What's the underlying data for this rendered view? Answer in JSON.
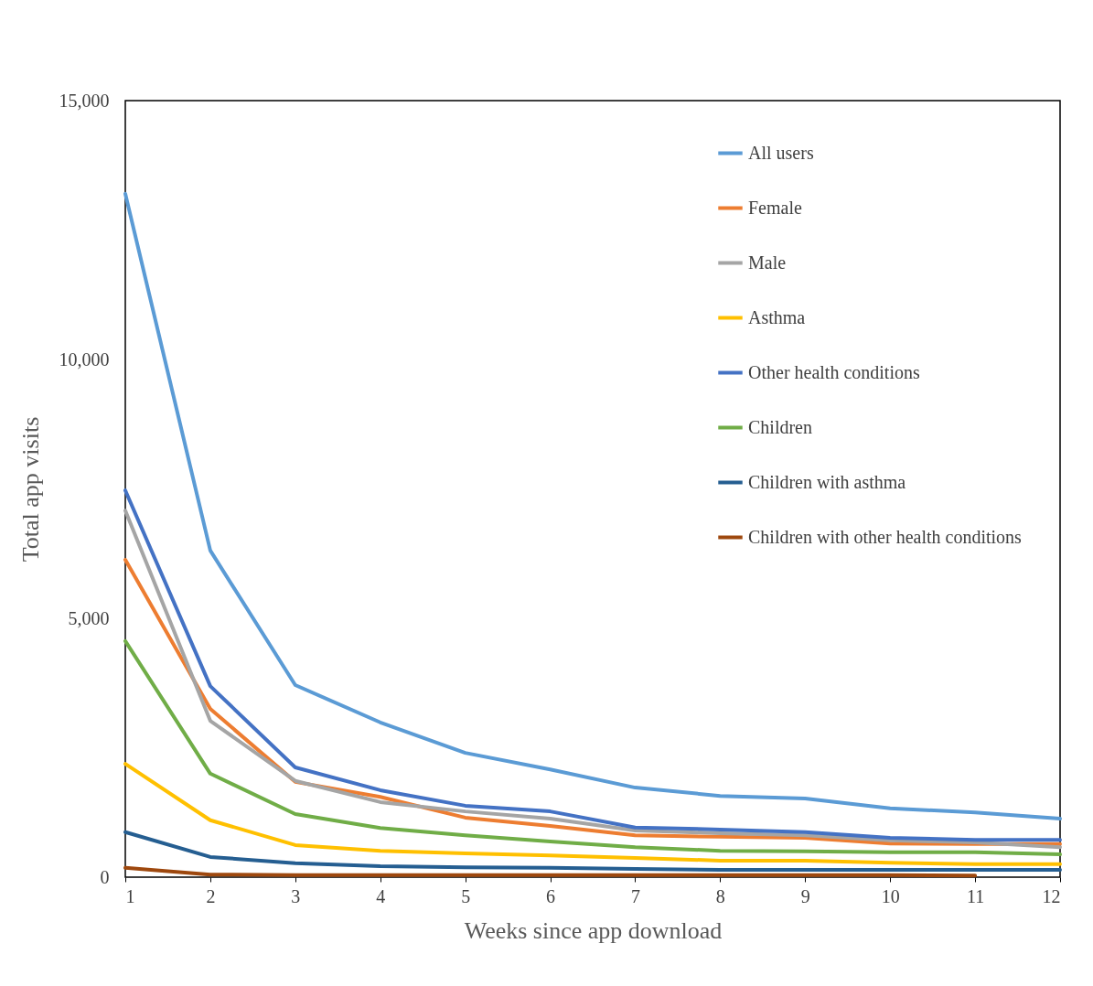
{
  "chart_data": {
    "type": "line",
    "xlabel": "Weeks since app download",
    "ylabel": "Total app visits",
    "x": [
      1,
      2,
      3,
      4,
      5,
      6,
      7,
      8,
      9,
      10,
      11,
      12
    ],
    "xlim": [
      1,
      12
    ],
    "xticks": [
      1,
      2,
      3,
      4,
      5,
      6,
      7,
      8,
      9,
      10,
      11,
      12
    ],
    "ylim": [
      0,
      15000
    ],
    "yticks": [
      0,
      {
        "value": 5000,
        "label": "5,000"
      },
      {
        "value": 10000,
        "label": "10,000"
      },
      {
        "value": 15000,
        "label": "15,000"
      }
    ],
    "grid": false,
    "legend": "top right",
    "marker": "none",
    "line_style": "solid",
    "series": [
      {
        "name": "All users",
        "color": "#5b9bd5",
        "values": [
          13200,
          6310,
          3710,
          2990,
          2400,
          2080,
          1730,
          1570,
          1520,
          1330,
          1250,
          1130
        ]
      },
      {
        "name": "Female",
        "color": "#ed7d31",
        "values": [
          6130,
          3250,
          1840,
          1550,
          1150,
          990,
          810,
          780,
          760,
          650,
          640,
          640
        ]
      },
      {
        "name": "Male",
        "color": "#a5a5a5",
        "values": [
          7080,
          3020,
          1860,
          1450,
          1270,
          1130,
          900,
          850,
          810,
          710,
          670,
          580
        ]
      },
      {
        "name": "Asthma",
        "color": "#ffc000",
        "values": [
          2190,
          1100,
          620,
          510,
          460,
          420,
          370,
          320,
          320,
          280,
          250,
          250
        ]
      },
      {
        "name": "Other health conditions",
        "color": "#4472c4",
        "values": [
          7470,
          3690,
          2120,
          1680,
          1380,
          1270,
          960,
          920,
          870,
          760,
          720,
          720
        ]
      },
      {
        "name": "Children",
        "color": "#70ad47",
        "values": [
          4560,
          2000,
          1220,
          950,
          810,
          690,
          580,
          510,
          500,
          480,
          480,
          440
        ]
      },
      {
        "name": "Children with asthma",
        "color": "#255e91",
        "values": [
          870,
          390,
          270,
          210,
          190,
          180,
          160,
          140,
          140,
          140,
          140,
          140
        ]
      },
      {
        "name": "Children with other health conditions",
        "color": "#9e480e",
        "values": [
          180,
          50,
          40,
          40,
          40,
          40,
          40,
          40,
          40,
          40,
          30,
          null
        ]
      }
    ]
  }
}
